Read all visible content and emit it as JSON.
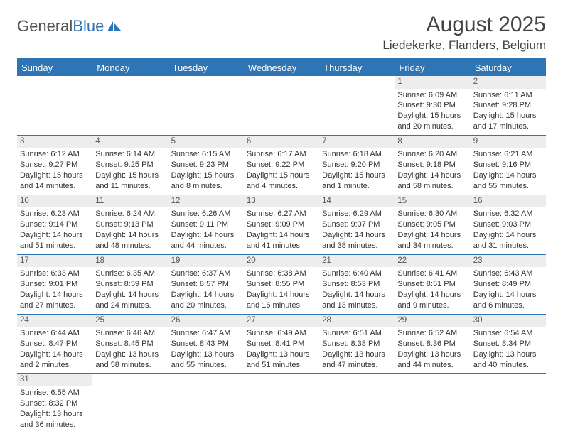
{
  "logo": {
    "text1": "General",
    "text2": "Blue"
  },
  "title": "August 2025",
  "location": "Liedekerke, Flanders, Belgium",
  "colors": {
    "header_bg": "#2e75b6",
    "header_text": "#ffffff",
    "daynum_bg": "#ededed",
    "border": "#2e75b6",
    "text": "#333333",
    "background": "#ffffff"
  },
  "weekdays": [
    "Sunday",
    "Monday",
    "Tuesday",
    "Wednesday",
    "Thursday",
    "Friday",
    "Saturday"
  ],
  "weeks": [
    [
      {
        "empty": true
      },
      {
        "empty": true
      },
      {
        "empty": true
      },
      {
        "empty": true
      },
      {
        "empty": true
      },
      {
        "day": "1",
        "sunrise": "Sunrise: 6:09 AM",
        "sunset": "Sunset: 9:30 PM",
        "daylight": "Daylight: 15 hours and 20 minutes."
      },
      {
        "day": "2",
        "sunrise": "Sunrise: 6:11 AM",
        "sunset": "Sunset: 9:28 PM",
        "daylight": "Daylight: 15 hours and 17 minutes."
      }
    ],
    [
      {
        "day": "3",
        "sunrise": "Sunrise: 6:12 AM",
        "sunset": "Sunset: 9:27 PM",
        "daylight": "Daylight: 15 hours and 14 minutes."
      },
      {
        "day": "4",
        "sunrise": "Sunrise: 6:14 AM",
        "sunset": "Sunset: 9:25 PM",
        "daylight": "Daylight: 15 hours and 11 minutes."
      },
      {
        "day": "5",
        "sunrise": "Sunrise: 6:15 AM",
        "sunset": "Sunset: 9:23 PM",
        "daylight": "Daylight: 15 hours and 8 minutes."
      },
      {
        "day": "6",
        "sunrise": "Sunrise: 6:17 AM",
        "sunset": "Sunset: 9:22 PM",
        "daylight": "Daylight: 15 hours and 4 minutes."
      },
      {
        "day": "7",
        "sunrise": "Sunrise: 6:18 AM",
        "sunset": "Sunset: 9:20 PM",
        "daylight": "Daylight: 15 hours and 1 minute."
      },
      {
        "day": "8",
        "sunrise": "Sunrise: 6:20 AM",
        "sunset": "Sunset: 9:18 PM",
        "daylight": "Daylight: 14 hours and 58 minutes."
      },
      {
        "day": "9",
        "sunrise": "Sunrise: 6:21 AM",
        "sunset": "Sunset: 9:16 PM",
        "daylight": "Daylight: 14 hours and 55 minutes."
      }
    ],
    [
      {
        "day": "10",
        "sunrise": "Sunrise: 6:23 AM",
        "sunset": "Sunset: 9:14 PM",
        "daylight": "Daylight: 14 hours and 51 minutes."
      },
      {
        "day": "11",
        "sunrise": "Sunrise: 6:24 AM",
        "sunset": "Sunset: 9:13 PM",
        "daylight": "Daylight: 14 hours and 48 minutes."
      },
      {
        "day": "12",
        "sunrise": "Sunrise: 6:26 AM",
        "sunset": "Sunset: 9:11 PM",
        "daylight": "Daylight: 14 hours and 44 minutes."
      },
      {
        "day": "13",
        "sunrise": "Sunrise: 6:27 AM",
        "sunset": "Sunset: 9:09 PM",
        "daylight": "Daylight: 14 hours and 41 minutes."
      },
      {
        "day": "14",
        "sunrise": "Sunrise: 6:29 AM",
        "sunset": "Sunset: 9:07 PM",
        "daylight": "Daylight: 14 hours and 38 minutes."
      },
      {
        "day": "15",
        "sunrise": "Sunrise: 6:30 AM",
        "sunset": "Sunset: 9:05 PM",
        "daylight": "Daylight: 14 hours and 34 minutes."
      },
      {
        "day": "16",
        "sunrise": "Sunrise: 6:32 AM",
        "sunset": "Sunset: 9:03 PM",
        "daylight": "Daylight: 14 hours and 31 minutes."
      }
    ],
    [
      {
        "day": "17",
        "sunrise": "Sunrise: 6:33 AM",
        "sunset": "Sunset: 9:01 PM",
        "daylight": "Daylight: 14 hours and 27 minutes."
      },
      {
        "day": "18",
        "sunrise": "Sunrise: 6:35 AM",
        "sunset": "Sunset: 8:59 PM",
        "daylight": "Daylight: 14 hours and 24 minutes."
      },
      {
        "day": "19",
        "sunrise": "Sunrise: 6:37 AM",
        "sunset": "Sunset: 8:57 PM",
        "daylight": "Daylight: 14 hours and 20 minutes."
      },
      {
        "day": "20",
        "sunrise": "Sunrise: 6:38 AM",
        "sunset": "Sunset: 8:55 PM",
        "daylight": "Daylight: 14 hours and 16 minutes."
      },
      {
        "day": "21",
        "sunrise": "Sunrise: 6:40 AM",
        "sunset": "Sunset: 8:53 PM",
        "daylight": "Daylight: 14 hours and 13 minutes."
      },
      {
        "day": "22",
        "sunrise": "Sunrise: 6:41 AM",
        "sunset": "Sunset: 8:51 PM",
        "daylight": "Daylight: 14 hours and 9 minutes."
      },
      {
        "day": "23",
        "sunrise": "Sunrise: 6:43 AM",
        "sunset": "Sunset: 8:49 PM",
        "daylight": "Daylight: 14 hours and 6 minutes."
      }
    ],
    [
      {
        "day": "24",
        "sunrise": "Sunrise: 6:44 AM",
        "sunset": "Sunset: 8:47 PM",
        "daylight": "Daylight: 14 hours and 2 minutes."
      },
      {
        "day": "25",
        "sunrise": "Sunrise: 6:46 AM",
        "sunset": "Sunset: 8:45 PM",
        "daylight": "Daylight: 13 hours and 58 minutes."
      },
      {
        "day": "26",
        "sunrise": "Sunrise: 6:47 AM",
        "sunset": "Sunset: 8:43 PM",
        "daylight": "Daylight: 13 hours and 55 minutes."
      },
      {
        "day": "27",
        "sunrise": "Sunrise: 6:49 AM",
        "sunset": "Sunset: 8:41 PM",
        "daylight": "Daylight: 13 hours and 51 minutes."
      },
      {
        "day": "28",
        "sunrise": "Sunrise: 6:51 AM",
        "sunset": "Sunset: 8:38 PM",
        "daylight": "Daylight: 13 hours and 47 minutes."
      },
      {
        "day": "29",
        "sunrise": "Sunrise: 6:52 AM",
        "sunset": "Sunset: 8:36 PM",
        "daylight": "Daylight: 13 hours and 44 minutes."
      },
      {
        "day": "30",
        "sunrise": "Sunrise: 6:54 AM",
        "sunset": "Sunset: 8:34 PM",
        "daylight": "Daylight: 13 hours and 40 minutes."
      }
    ],
    [
      {
        "day": "31",
        "sunrise": "Sunrise: 6:55 AM",
        "sunset": "Sunset: 8:32 PM",
        "daylight": "Daylight: 13 hours and 36 minutes."
      },
      {
        "empty": true
      },
      {
        "empty": true
      },
      {
        "empty": true
      },
      {
        "empty": true
      },
      {
        "empty": true
      },
      {
        "empty": true
      }
    ]
  ]
}
